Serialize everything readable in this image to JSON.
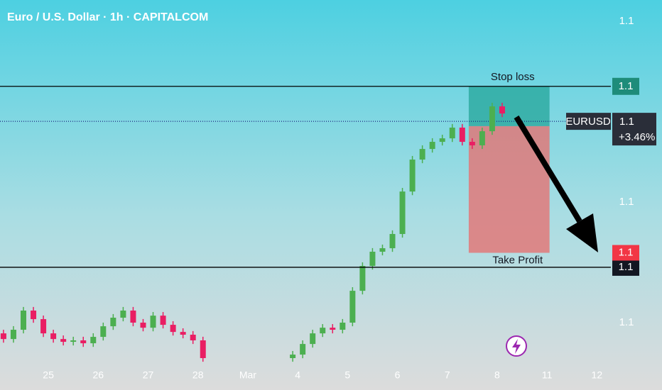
{
  "chart_data": {
    "type": "candlestick",
    "title": "Euro / U.S. Dollar · 1h · CAPITALCOM",
    "up_color": "#4caf50",
    "down_color": "#e91e63",
    "xlim": [
      -0.97,
      11.28
    ],
    "xticks": [
      {
        "value": 0,
        "label": "25"
      },
      {
        "value": 1,
        "label": "26"
      },
      {
        "value": 2,
        "label": "27"
      },
      {
        "value": 3,
        "label": "28"
      },
      {
        "value": 4,
        "label": "Mar"
      },
      {
        "value": 5,
        "label": "4"
      },
      {
        "value": 6,
        "label": "5"
      },
      {
        "value": 7,
        "label": "6"
      },
      {
        "value": 8,
        "label": "7"
      },
      {
        "value": 9,
        "label": "8"
      },
      {
        "value": 10,
        "label": "11"
      },
      {
        "value": 11,
        "label": "12"
      }
    ],
    "ylim": [
      1.0766,
      1.10676
    ],
    "yticks": [
      {
        "value": 1.105,
        "label": "1.1"
      },
      {
        "value": 1.09,
        "label": "1.1"
      },
      {
        "value": 1.08,
        "label": "1.1"
      }
    ],
    "grid": false,
    "x": [
      -0.9,
      -0.7,
      -0.5,
      -0.3,
      -0.1,
      0.1,
      0.3,
      0.5,
      0.7,
      0.9,
      1.1,
      1.3,
      1.5,
      1.7,
      1.9,
      2.1,
      2.3,
      2.5,
      2.7,
      2.9,
      3.1,
      4.9,
      5.1,
      5.3,
      5.5,
      5.7,
      5.9,
      6.1,
      6.3,
      6.5,
      6.7,
      6.9,
      7.1,
      7.3,
      7.5,
      7.7,
      7.9,
      8.1,
      8.3,
      8.5,
      8.7,
      8.9,
      9.1
    ],
    "open": [
      1.07912,
      1.07865,
      1.07942,
      1.08101,
      1.0803,
      1.07912,
      1.07865,
      1.07842,
      1.07854,
      1.0783,
      1.07883,
      1.07971,
      1.08042,
      1.08101,
      1.08001,
      1.07959,
      1.08059,
      1.07983,
      1.07924,
      1.07901,
      1.07854,
      1.07707,
      1.07736,
      1.07824,
      1.07912,
      1.07959,
      1.07942,
      1.08001,
      1.08265,
      1.08471,
      1.08589,
      1.08618,
      1.08736,
      1.09088,
      1.09353,
      1.09441,
      1.095,
      1.09529,
      1.09618,
      1.095,
      1.09471,
      1.09588,
      1.09794
    ],
    "high": [
      1.07942,
      1.07972,
      1.08131,
      1.08131,
      1.0806,
      1.07942,
      1.07895,
      1.07884,
      1.07884,
      1.07913,
      1.08001,
      1.08072,
      1.08131,
      1.08131,
      1.08031,
      1.08089,
      1.08089,
      1.08013,
      1.07954,
      1.07931,
      1.07884,
      1.07766,
      1.07854,
      1.07942,
      1.07989,
      1.07989,
      1.08031,
      1.08295,
      1.08501,
      1.08619,
      1.08648,
      1.08766,
      1.09118,
      1.09383,
      1.09471,
      1.0953,
      1.09559,
      1.09648,
      1.09648,
      1.0953,
      1.09618,
      1.09824,
      1.09824
    ],
    "low": [
      1.07835,
      1.07835,
      1.07912,
      1.08,
      1.07882,
      1.07835,
      1.07812,
      1.07812,
      1.078,
      1.078,
      1.07853,
      1.07941,
      1.08012,
      1.07971,
      1.07929,
      1.07929,
      1.07953,
      1.07894,
      1.07871,
      1.07824,
      1.07677,
      1.07677,
      1.07706,
      1.07794,
      1.07882,
      1.07912,
      1.07912,
      1.07971,
      1.08235,
      1.08441,
      1.08559,
      1.08588,
      1.08706,
      1.09058,
      1.09323,
      1.09411,
      1.0947,
      1.09499,
      1.0947,
      1.09441,
      1.09441,
      1.09558,
      1.09705
    ],
    "close": [
      1.07865,
      1.07942,
      1.08101,
      1.0803,
      1.07912,
      1.07865,
      1.07842,
      1.07854,
      1.0783,
      1.07883,
      1.07971,
      1.08042,
      1.08101,
      1.08001,
      1.07959,
      1.08059,
      1.07983,
      1.07924,
      1.07901,
      1.07854,
      1.07707,
      1.07736,
      1.07824,
      1.07912,
      1.07959,
      1.07942,
      1.08001,
      1.08265,
      1.08471,
      1.08589,
      1.08618,
      1.08736,
      1.09088,
      1.09353,
      1.09441,
      1.095,
      1.09529,
      1.09618,
      1.095,
      1.09471,
      1.09588,
      1.09794,
      1.09735
    ],
    "horizontal_lines": [
      {
        "value": 1.0996
      },
      {
        "value": 1.0846,
        "label": "1.1"
      }
    ],
    "position": {
      "x_start": 8.43,
      "x_end": 10.05,
      "entry": 1.0963,
      "stop_loss": {
        "text": "Stop loss",
        "value": 1.0996,
        "label": "1.1"
      },
      "take_profit": {
        "text": "Take Profit",
        "value": 1.0858,
        "label": "1.1"
      }
    },
    "last_price": {
      "symbol": "EURUSD",
      "value": 1.0967,
      "label": "1.1",
      "change": "+3.46%"
    }
  }
}
